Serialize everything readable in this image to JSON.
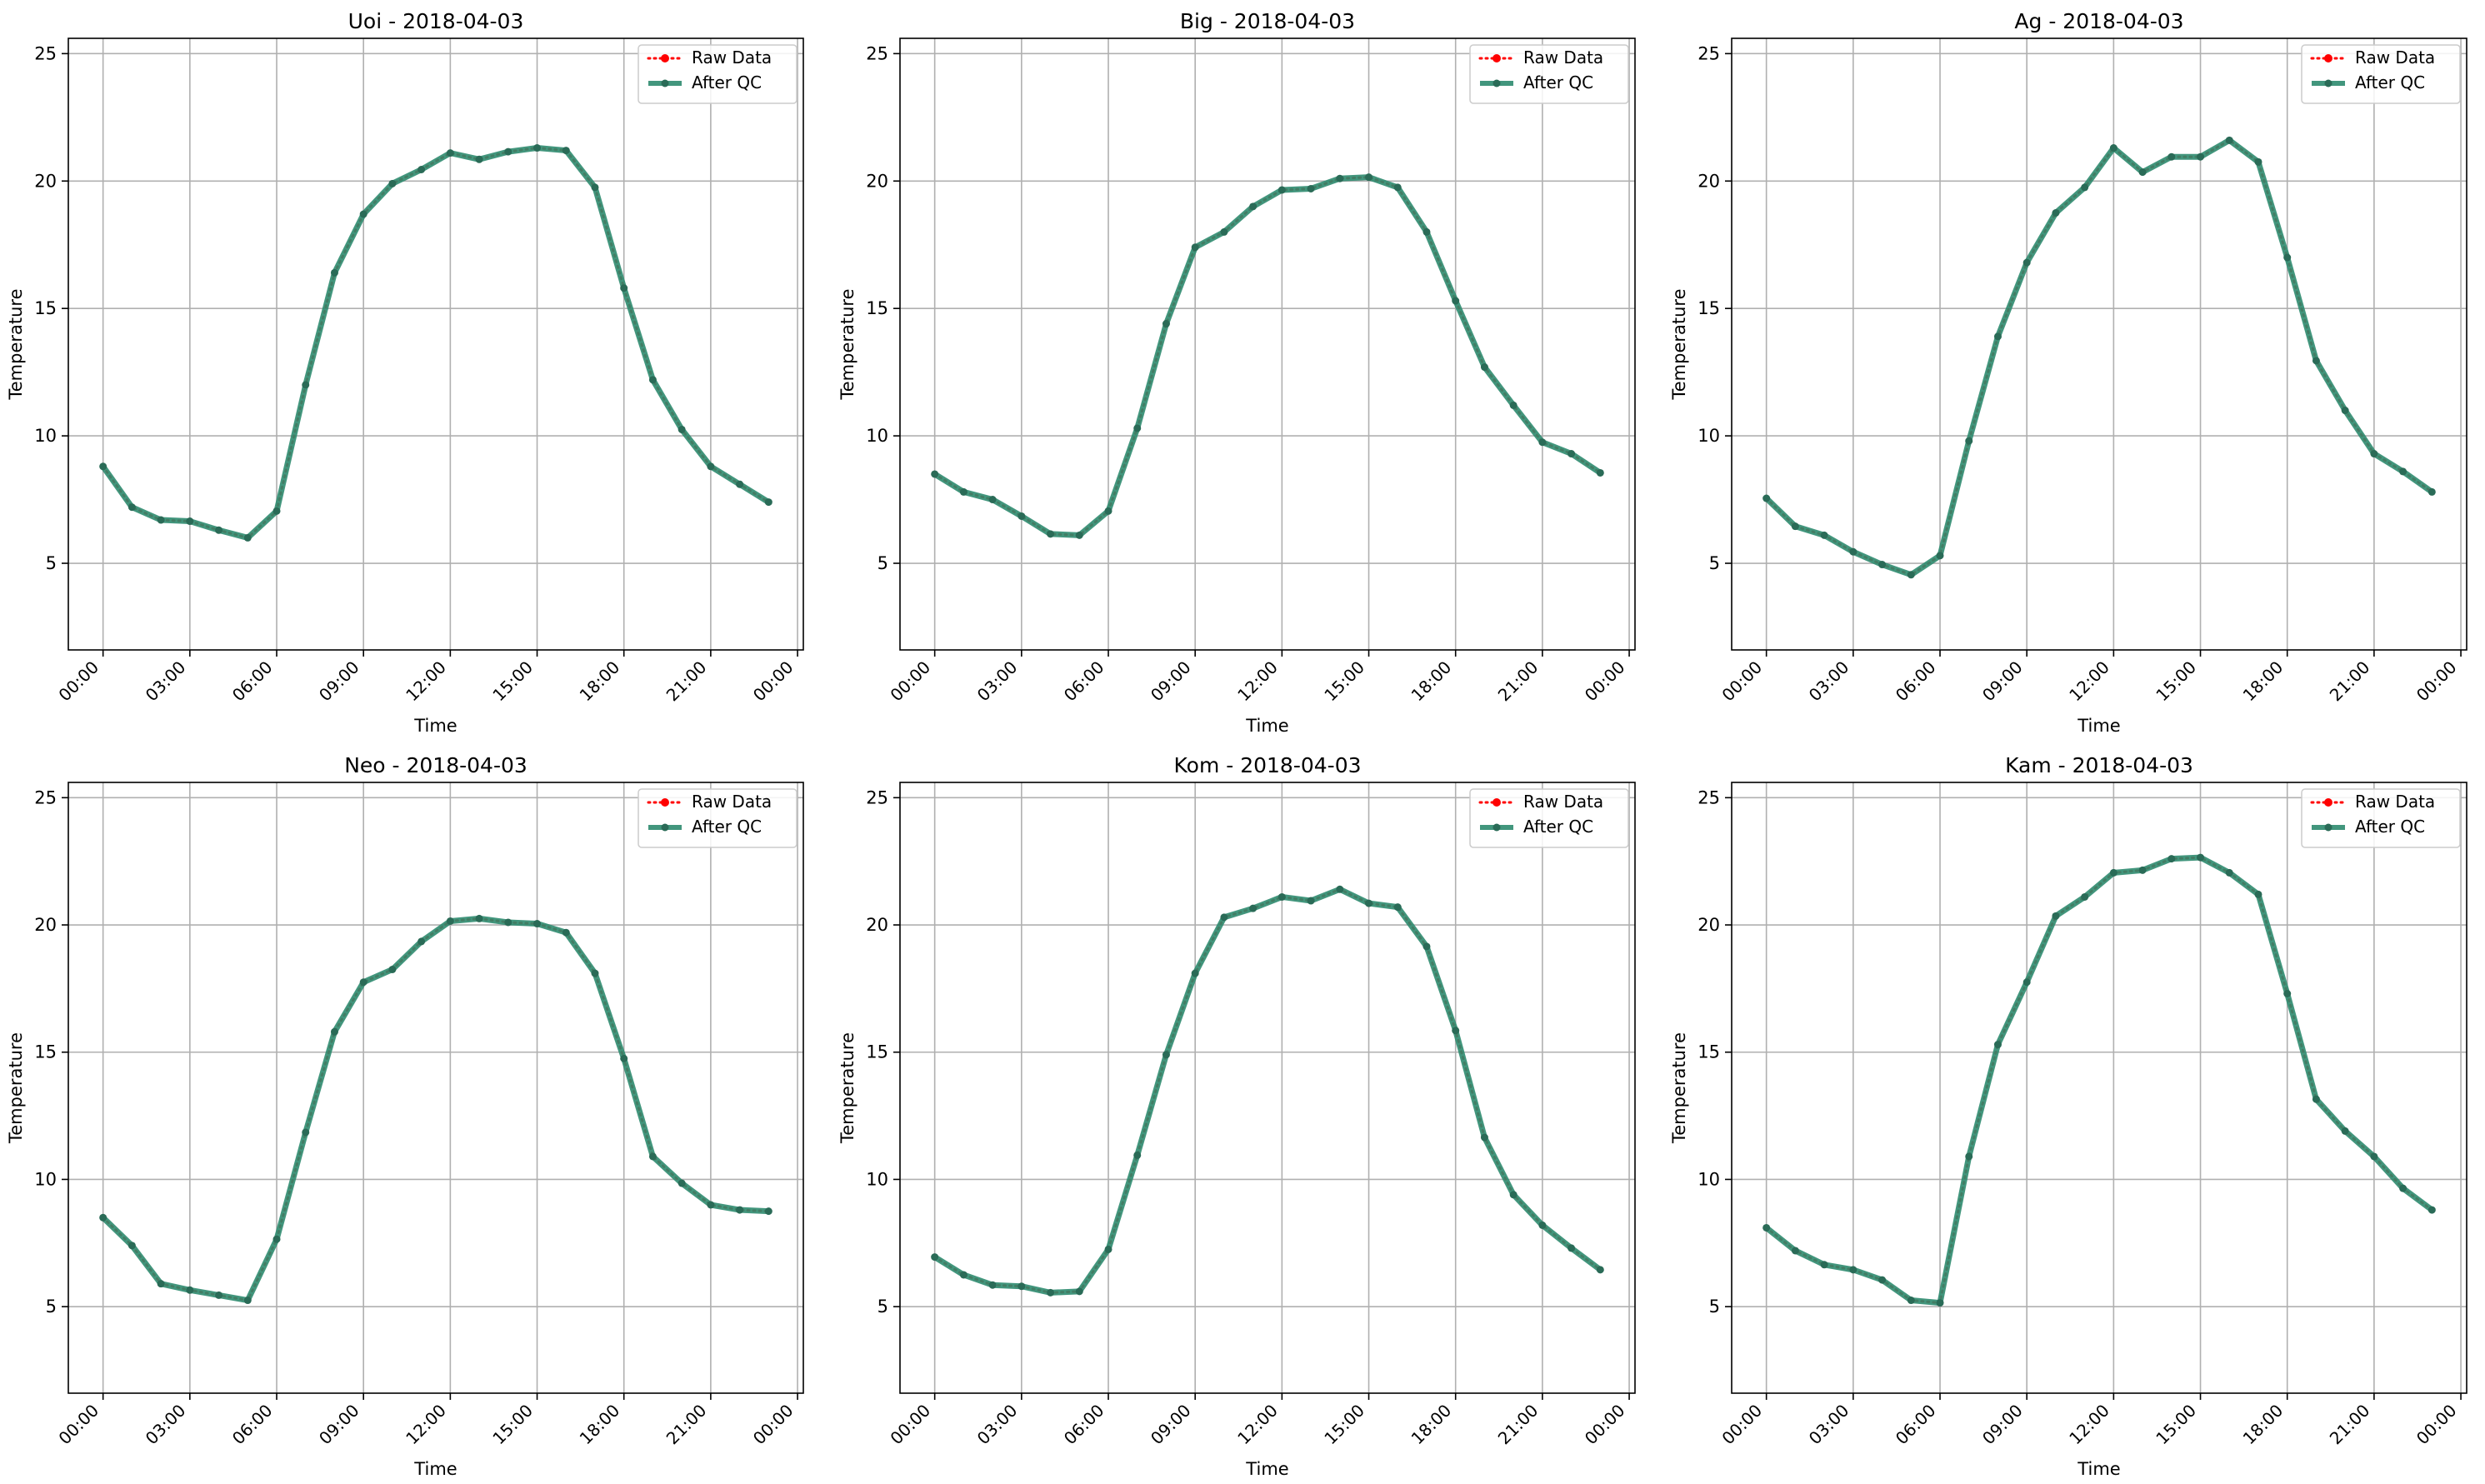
{
  "legend": {
    "raw_label": "Raw Data",
    "qc_label": "After QC"
  },
  "colors": {
    "raw": "#ff0000",
    "qc": "#2e8b6f",
    "qc_marker": "#2a6b57",
    "grid": "#b0b0b0",
    "axis": "#000000"
  },
  "chart_data": [
    {
      "type": "line",
      "title": "Uoi - 2018-04-03",
      "xlabel": "Time",
      "ylabel": "Temperature",
      "x_ticks": [
        "00:00",
        "03:00",
        "06:00",
        "09:00",
        "12:00",
        "15:00",
        "18:00",
        "21:00",
        "00:00"
      ],
      "y_ticks": [
        5,
        10,
        15,
        20,
        25
      ],
      "ylim": [
        1.6,
        25.6
      ],
      "xlim_hours": [
        -1.2,
        24.2
      ],
      "grid": true,
      "legend_position": "upper-right",
      "x_hours": [
        0,
        1,
        2,
        3,
        4,
        5,
        6,
        7,
        8,
        9,
        10,
        11,
        12,
        13,
        14,
        15,
        16,
        17,
        18,
        19,
        20,
        21,
        22,
        23
      ],
      "series": [
        {
          "name": "Raw Data",
          "values": [
            8.8,
            7.2,
            6.7,
            6.65,
            6.3,
            6.0,
            7.05,
            12.0,
            16.4,
            18.7,
            19.9,
            20.45,
            21.1,
            20.85,
            21.15,
            21.3,
            21.2,
            19.75,
            15.8,
            12.2,
            10.25,
            8.8,
            8.1,
            7.4
          ]
        },
        {
          "name": "After QC",
          "values": [
            8.8,
            7.2,
            6.7,
            6.65,
            6.3,
            6.0,
            7.05,
            12.0,
            16.4,
            18.7,
            19.9,
            20.45,
            21.1,
            20.85,
            21.15,
            21.3,
            21.2,
            19.75,
            15.8,
            12.2,
            10.25,
            8.8,
            8.1,
            7.4
          ]
        }
      ]
    },
    {
      "type": "line",
      "title": "Big - 2018-04-03",
      "xlabel": "Time",
      "ylabel": "Temperature",
      "x_ticks": [
        "00:00",
        "03:00",
        "06:00",
        "09:00",
        "12:00",
        "15:00",
        "18:00",
        "21:00",
        "00:00"
      ],
      "y_ticks": [
        5,
        10,
        15,
        20,
        25
      ],
      "ylim": [
        1.6,
        25.6
      ],
      "xlim_hours": [
        -1.2,
        24.2
      ],
      "grid": true,
      "legend_position": "upper-right",
      "x_hours": [
        0,
        1,
        2,
        3,
        4,
        5,
        6,
        7,
        8,
        9,
        10,
        11,
        12,
        13,
        14,
        15,
        16,
        17,
        18,
        19,
        20,
        21,
        22,
        23
      ],
      "series": [
        {
          "name": "Raw Data",
          "values": [
            8.5,
            7.8,
            7.5,
            6.85,
            6.15,
            6.1,
            7.05,
            10.3,
            14.4,
            17.4,
            18.0,
            19.0,
            19.65,
            19.7,
            20.1,
            20.15,
            19.75,
            18.0,
            15.3,
            12.7,
            11.2,
            9.75,
            9.3,
            8.55
          ]
        },
        {
          "name": "After QC",
          "values": [
            8.5,
            7.8,
            7.5,
            6.85,
            6.15,
            6.1,
            7.05,
            10.3,
            14.4,
            17.4,
            18.0,
            19.0,
            19.65,
            19.7,
            20.1,
            20.15,
            19.75,
            18.0,
            15.3,
            12.7,
            11.2,
            9.75,
            9.3,
            8.55
          ]
        }
      ]
    },
    {
      "type": "line",
      "title": "Ag - 2018-04-03",
      "xlabel": "Time",
      "ylabel": "Temperature",
      "x_ticks": [
        "00:00",
        "03:00",
        "06:00",
        "09:00",
        "12:00",
        "15:00",
        "18:00",
        "21:00",
        "00:00"
      ],
      "y_ticks": [
        5,
        10,
        15,
        20,
        25
      ],
      "ylim": [
        1.6,
        25.6
      ],
      "xlim_hours": [
        -1.2,
        24.2
      ],
      "grid": true,
      "legend_position": "upper-right",
      "x_hours": [
        0,
        1,
        2,
        3,
        4,
        5,
        6,
        7,
        8,
        9,
        10,
        11,
        12,
        13,
        14,
        15,
        16,
        17,
        18,
        19,
        20,
        21,
        22,
        23
      ],
      "series": [
        {
          "name": "Raw Data",
          "values": [
            7.55,
            6.45,
            6.1,
            5.45,
            4.95,
            4.55,
            5.3,
            9.8,
            13.9,
            16.8,
            18.75,
            19.75,
            21.3,
            20.35,
            20.95,
            20.95,
            21.6,
            20.75,
            17.0,
            12.95,
            11.0,
            9.3,
            8.6,
            7.8
          ]
        },
        {
          "name": "After QC",
          "values": [
            7.55,
            6.45,
            6.1,
            5.45,
            4.95,
            4.55,
            5.3,
            9.8,
            13.9,
            16.8,
            18.75,
            19.75,
            21.3,
            20.35,
            20.95,
            20.95,
            21.6,
            20.75,
            17.0,
            12.95,
            11.0,
            9.3,
            8.6,
            7.8
          ]
        }
      ]
    },
    {
      "type": "line",
      "title": "Neo - 2018-04-03",
      "xlabel": "Time",
      "ylabel": "Temperature",
      "x_ticks": [
        "00:00",
        "03:00",
        "06:00",
        "09:00",
        "12:00",
        "15:00",
        "18:00",
        "21:00",
        "00:00"
      ],
      "y_ticks": [
        5,
        10,
        15,
        20,
        25
      ],
      "ylim": [
        1.6,
        25.6
      ],
      "xlim_hours": [
        -1.2,
        24.2
      ],
      "grid": true,
      "legend_position": "upper-right",
      "x_hours": [
        0,
        1,
        2,
        3,
        4,
        5,
        6,
        7,
        8,
        9,
        10,
        11,
        12,
        13,
        14,
        15,
        16,
        17,
        18,
        19,
        20,
        21,
        22,
        23
      ],
      "series": [
        {
          "name": "Raw Data",
          "values": [
            8.5,
            7.4,
            5.9,
            5.65,
            5.45,
            5.25,
            7.65,
            11.85,
            15.8,
            17.75,
            18.25,
            19.35,
            20.15,
            20.25,
            20.1,
            20.05,
            19.7,
            18.1,
            14.75,
            10.9,
            9.85,
            9.0,
            8.8,
            8.75
          ]
        },
        {
          "name": "After QC",
          "values": [
            8.5,
            7.4,
            5.9,
            5.65,
            5.45,
            5.25,
            7.65,
            11.85,
            15.8,
            17.75,
            18.25,
            19.35,
            20.15,
            20.25,
            20.1,
            20.05,
            19.7,
            18.1,
            14.75,
            10.9,
            9.85,
            9.0,
            8.8,
            8.75
          ]
        }
      ]
    },
    {
      "type": "line",
      "title": "Kom - 2018-04-03",
      "xlabel": "Time",
      "ylabel": "Temperature",
      "x_ticks": [
        "00:00",
        "03:00",
        "06:00",
        "09:00",
        "12:00",
        "15:00",
        "18:00",
        "21:00",
        "00:00"
      ],
      "y_ticks": [
        5,
        10,
        15,
        20,
        25
      ],
      "ylim": [
        1.6,
        25.6
      ],
      "xlim_hours": [
        -1.2,
        24.2
      ],
      "grid": true,
      "legend_position": "upper-right",
      "x_hours": [
        0,
        1,
        2,
        3,
        4,
        5,
        6,
        7,
        8,
        9,
        10,
        11,
        12,
        13,
        14,
        15,
        16,
        17,
        18,
        19,
        20,
        21,
        22,
        23
      ],
      "series": [
        {
          "name": "Raw Data",
          "values": [
            6.95,
            6.25,
            5.85,
            5.8,
            5.55,
            5.6,
            7.25,
            10.95,
            14.9,
            18.1,
            20.3,
            20.65,
            21.1,
            20.95,
            21.4,
            20.85,
            20.7,
            19.15,
            15.85,
            11.65,
            9.4,
            8.2,
            7.3,
            6.45
          ]
        },
        {
          "name": "After QC",
          "values": [
            6.95,
            6.25,
            5.85,
            5.8,
            5.55,
            5.6,
            7.25,
            10.95,
            14.9,
            18.1,
            20.3,
            20.65,
            21.1,
            20.95,
            21.4,
            20.85,
            20.7,
            19.15,
            15.85,
            11.65,
            9.4,
            8.2,
            7.3,
            6.45
          ]
        }
      ]
    },
    {
      "type": "line",
      "title": "Kam - 2018-04-03",
      "xlabel": "Time",
      "ylabel": "Temperature",
      "x_ticks": [
        "00:00",
        "03:00",
        "06:00",
        "09:00",
        "12:00",
        "15:00",
        "18:00",
        "21:00",
        "00:00"
      ],
      "y_ticks": [
        5,
        10,
        15,
        20,
        25
      ],
      "ylim": [
        1.6,
        25.6
      ],
      "xlim_hours": [
        -1.2,
        24.2
      ],
      "grid": true,
      "legend_position": "upper-right",
      "x_hours": [
        0,
        1,
        2,
        3,
        4,
        5,
        6,
        7,
        8,
        9,
        10,
        11,
        12,
        13,
        14,
        15,
        16,
        17,
        18,
        19,
        20,
        21,
        22,
        23
      ],
      "series": [
        {
          "name": "Raw Data",
          "values": [
            8.1,
            7.2,
            6.65,
            6.45,
            6.05,
            5.25,
            5.15,
            10.9,
            15.3,
            17.75,
            20.35,
            21.1,
            22.05,
            22.15,
            22.6,
            22.65,
            22.05,
            21.2,
            17.3,
            13.15,
            11.9,
            10.9,
            9.65,
            8.8
          ]
        },
        {
          "name": "After QC",
          "values": [
            8.1,
            7.2,
            6.65,
            6.45,
            6.05,
            5.25,
            5.15,
            10.9,
            15.3,
            17.75,
            20.35,
            21.1,
            22.05,
            22.15,
            22.6,
            22.65,
            22.05,
            21.2,
            17.3,
            13.15,
            11.9,
            10.9,
            9.65,
            8.8
          ]
        }
      ]
    }
  ]
}
